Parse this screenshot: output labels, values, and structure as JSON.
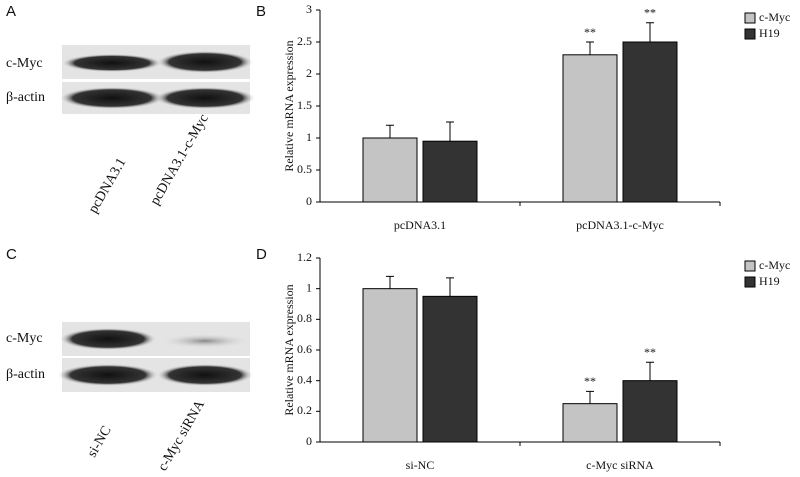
{
  "panels": [
    "A",
    "B",
    "C",
    "D"
  ],
  "blots": [
    {
      "rows": [
        "c-Myc",
        "β-actin"
      ],
      "lanes": [
        "pcDNA3.1",
        "pcDNA3.1-c-Myc"
      ]
    },
    {
      "rows": [
        "c-Myc",
        "β-actin"
      ],
      "lanes": [
        "si-NC",
        "c-Myc siRNA"
      ]
    }
  ],
  "chart_data": [
    {
      "type": "bar",
      "y_label": "Relative mRNA expression",
      "categories": [
        "pcDNA3.1",
        "pcDNA3.1-c-Myc"
      ],
      "series": [
        {
          "name": "c-Myc",
          "color": "#c4c4c4",
          "values": [
            1.0,
            2.3
          ],
          "errors": [
            0.2,
            0.2
          ],
          "significance": [
            null,
            "**"
          ]
        },
        {
          "name": "H19",
          "color": "#333333",
          "values": [
            0.95,
            2.5
          ],
          "errors": [
            0.3,
            0.3
          ],
          "significance": [
            null,
            "**"
          ]
        }
      ],
      "ylim": [
        0,
        3
      ],
      "yticks": [
        0,
        0.5,
        1,
        1.5,
        2,
        2.5,
        3
      ],
      "legend": "top-right"
    },
    {
      "type": "bar",
      "y_label": "Relative mRNA expression",
      "categories": [
        "si-NC",
        "c-Myc siRNA"
      ],
      "series": [
        {
          "name": "c-Myc",
          "color": "#c4c4c4",
          "values": [
            1.0,
            0.25
          ],
          "errors": [
            0.08,
            0.08
          ],
          "significance": [
            null,
            "**"
          ]
        },
        {
          "name": "H19",
          "color": "#333333",
          "values": [
            0.95,
            0.4
          ],
          "errors": [
            0.12,
            0.12
          ],
          "significance": [
            null,
            "**"
          ]
        }
      ],
      "ylim": [
        0,
        1.2
      ],
      "yticks": [
        0,
        0.2,
        0.4,
        0.6,
        0.8,
        1,
        1.2
      ],
      "legend": "top-right"
    }
  ]
}
